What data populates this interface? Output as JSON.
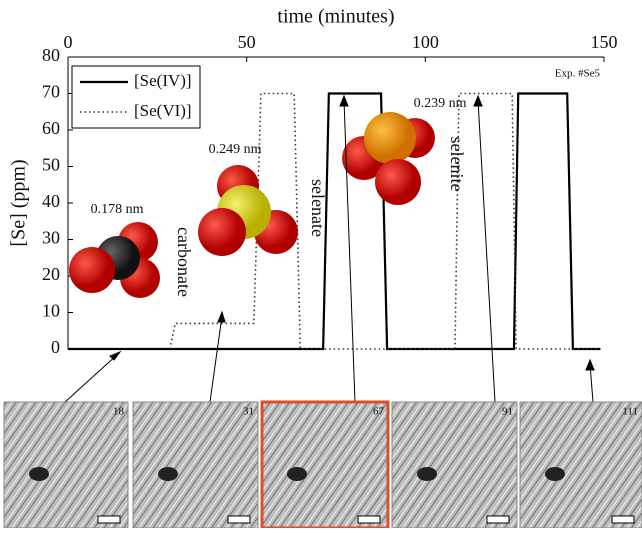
{
  "chart_data": {
    "type": "line",
    "x_label": "time (minutes)",
    "y_label": "[Se] (ppm)",
    "xlim": [
      0,
      150
    ],
    "xticks": [
      0,
      50,
      100,
      150
    ],
    "ylim": [
      0,
      80
    ],
    "yticks": [
      0,
      10,
      20,
      30,
      40,
      50,
      60,
      70,
      80
    ],
    "series": [
      {
        "name": "[Se(IV)]",
        "color": "#000000",
        "style": "solid",
        "x": [
          0,
          71.4,
          73,
          87.6,
          89.3,
          124.8,
          126,
          139.7,
          141.3,
          149
        ],
        "values": [
          0,
          0,
          70,
          70,
          0,
          0,
          70,
          70,
          0,
          0
        ]
      },
      {
        "name": "[Se(VI)]",
        "color": "#333333",
        "style": "dotted",
        "x": [
          28.5,
          30,
          52,
          54,
          63.3,
          65,
          108.3,
          109.4,
          124.3,
          125.4,
          149
        ],
        "values": [
          0,
          7,
          7,
          70,
          70,
          0,
          0,
          70,
          70,
          0,
          0
        ]
      }
    ],
    "annotations": [
      "Exp. #Se5",
      "0.178 nm",
      "0.249 nm",
      "0.239 nm",
      "carbonate",
      "selenate",
      "selenite"
    ]
  },
  "panels": [
    18,
    31,
    67,
    91,
    111
  ]
}
